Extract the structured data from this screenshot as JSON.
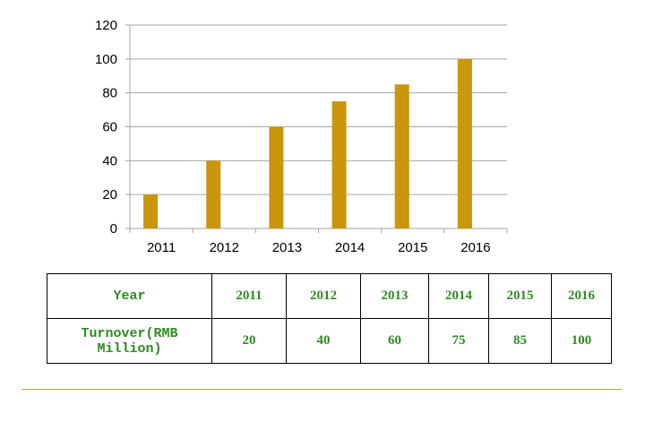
{
  "chart_data": {
    "type": "bar",
    "categories": [
      "2011",
      "2012",
      "2013",
      "2014",
      "2015",
      "2016"
    ],
    "values": [
      20,
      40,
      60,
      75,
      85,
      100
    ],
    "ylim": [
      0,
      120
    ],
    "yticks": [
      "0",
      "20",
      "40",
      "60",
      "80",
      "100",
      "120"
    ],
    "grid": true,
    "title": "",
    "xlabel": "",
    "ylabel": ""
  },
  "colors": {
    "bar": "#c9960c",
    "grid": "#a6a6a6",
    "table_text": "#2e8b21",
    "rule": "#c9a233"
  },
  "table": {
    "header_label": "Year",
    "row_label": "Turnover(RMB Million)",
    "years": [
      "2011",
      "2012",
      "2013",
      "2014",
      "2015",
      "2016"
    ],
    "values": [
      "20",
      "40",
      "60",
      "75",
      "85",
      "100"
    ]
  }
}
